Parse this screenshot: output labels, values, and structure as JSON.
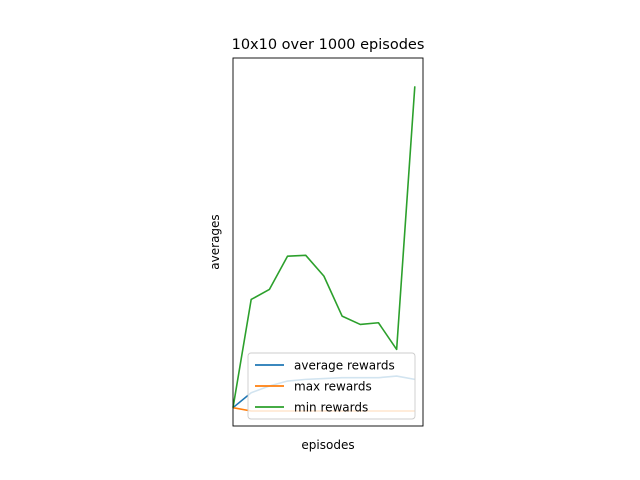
{
  "chart_data": {
    "type": "line",
    "title": "10x10 over 1000 episodes",
    "xlabel": "episodes",
    "ylabel": "averages",
    "x": [
      0,
      1,
      2,
      3,
      4,
      5,
      6,
      7,
      8,
      9,
      10
    ],
    "xlim": [
      0,
      10.45
    ],
    "ylim": [
      -1.1,
      21.0
    ],
    "grid": false,
    "ticks_visible": false,
    "legend_position": "lower right",
    "series": [
      {
        "name": "average rewards",
        "color": "#1f77b4",
        "values": [
          0.0,
          0.9,
          1.3,
          1.6,
          1.7,
          1.75,
          1.8,
          1.8,
          1.8,
          1.9,
          1.7
        ]
      },
      {
        "name": "max rewards",
        "color": "#ff7f0e",
        "values": [
          0.0,
          -0.2,
          -0.2,
          -0.2,
          -0.2,
          -0.2,
          -0.2,
          -0.2,
          -0.2,
          -0.2,
          -0.2
        ]
      },
      {
        "name": "min rewards",
        "color": "#2ca02c",
        "values": [
          0.0,
          6.5,
          7.1,
          9.1,
          9.15,
          7.9,
          5.5,
          5.0,
          5.1,
          3.5,
          19.3
        ]
      }
    ]
  }
}
